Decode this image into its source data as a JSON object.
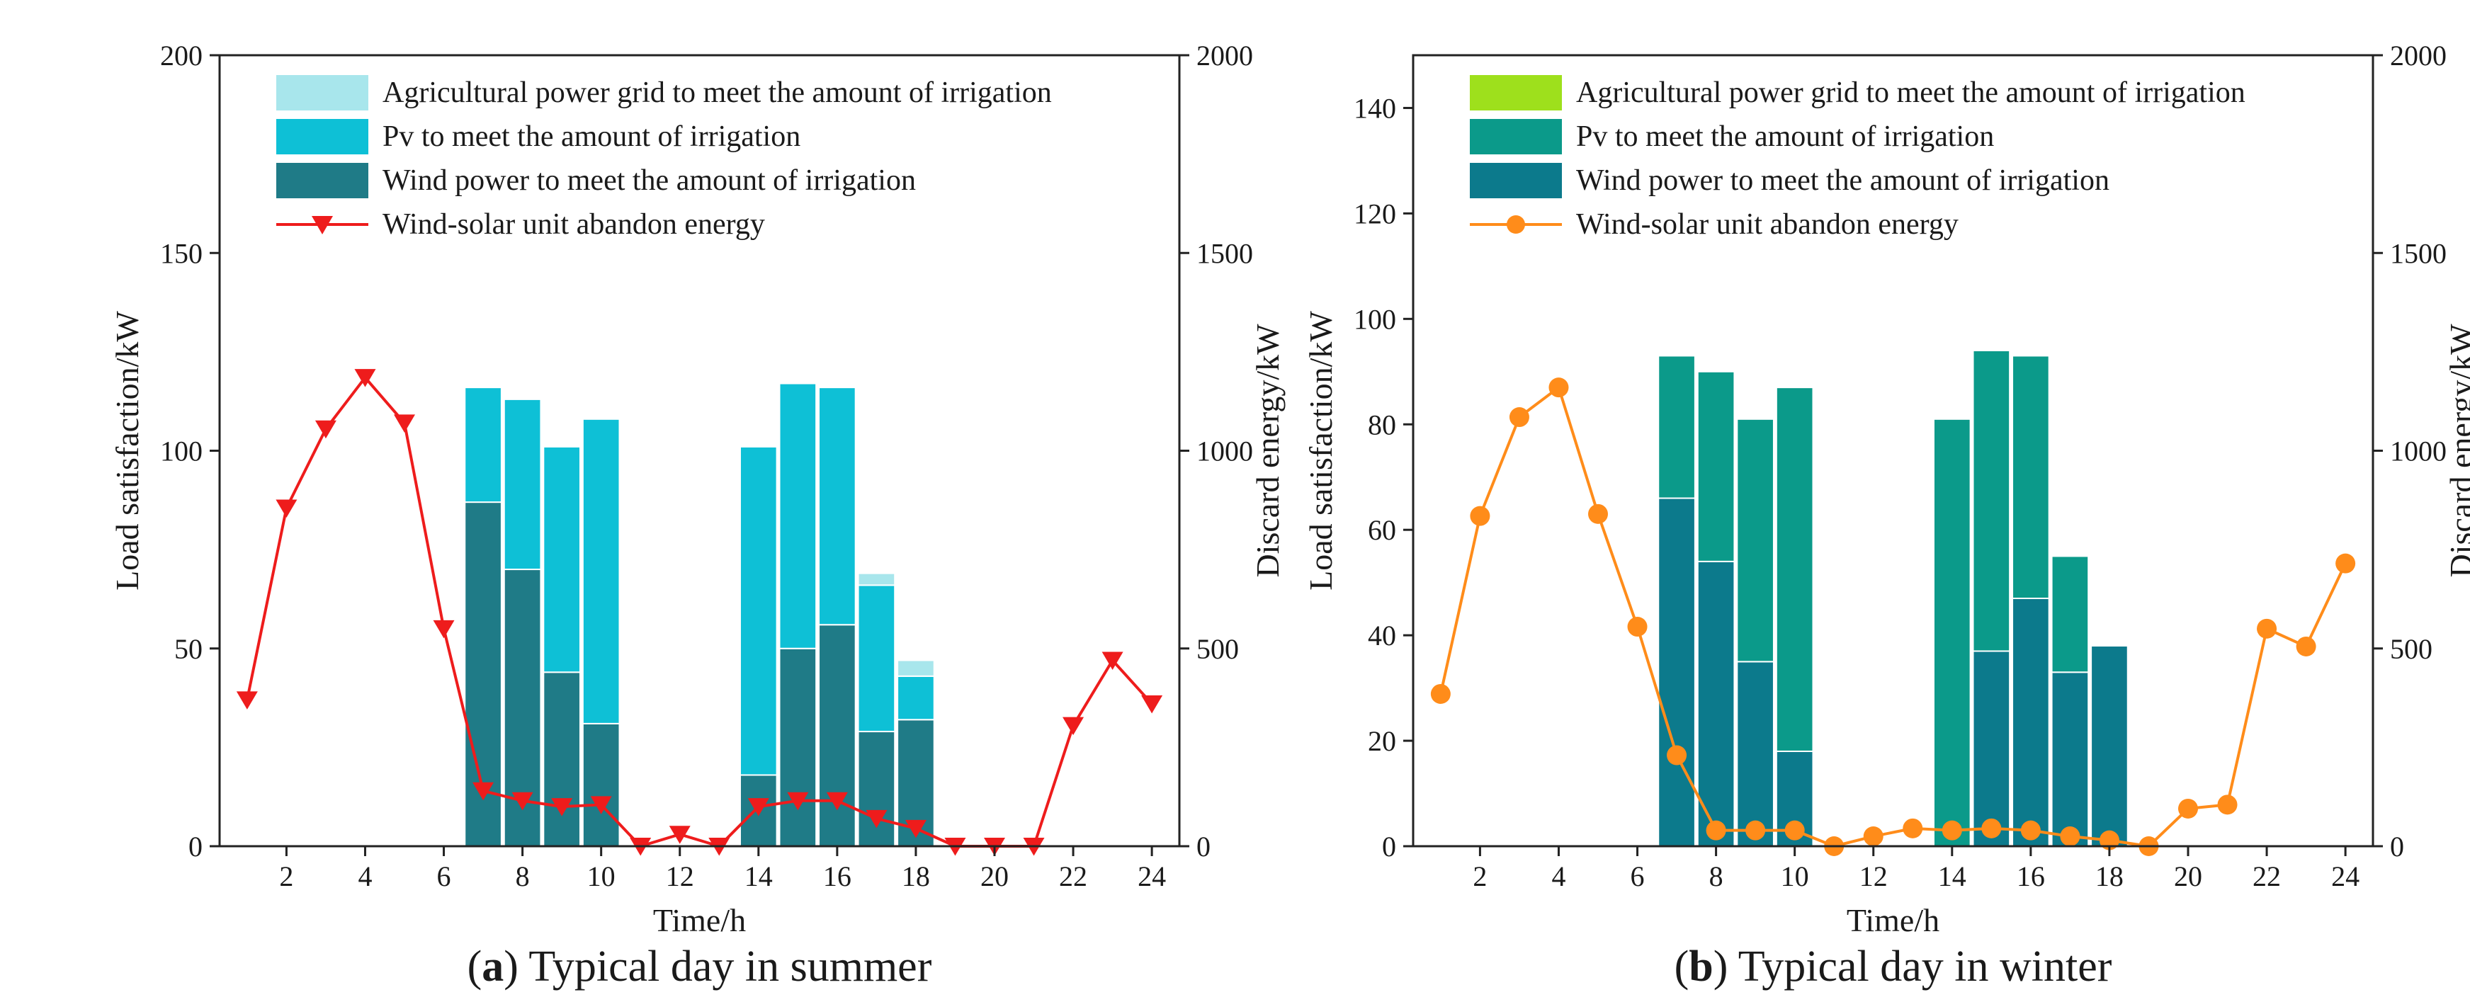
{
  "chart_data": [
    {
      "type": "bar",
      "panel_id": "summer",
      "caption_letter": "a",
      "caption_rest": ") Typical day in summer",
      "xlabel": "Time/h",
      "ylabel": "Load satisfaction/kW",
      "y2label": "Discard energy/kW",
      "xlim": [
        0.3,
        24.7
      ],
      "xticks": [
        2,
        4,
        6,
        8,
        10,
        12,
        14,
        16,
        18,
        20,
        22,
        24
      ],
      "ylim": [
        0,
        200
      ],
      "yticks": [
        0,
        50,
        100,
        150,
        200
      ],
      "y2lim": [
        0,
        2000
      ],
      "y2ticks": [
        0,
        500,
        1000,
        1500,
        2000
      ],
      "legend_placement": "top-left",
      "bar_hours": [
        7,
        8,
        9,
        10,
        14,
        15,
        16,
        17,
        18
      ],
      "series": [
        {
          "name": "Agricultural power grid to meet the amount of irrigation",
          "kind": "bar",
          "color": "#a8e6ec",
          "values": [
            0,
            0,
            0,
            0,
            0,
            0,
            0,
            3,
            4
          ]
        },
        {
          "name": "Pv to meet the amount of irrigation",
          "kind": "bar",
          "color": "#0ec0d6",
          "values": [
            29,
            43,
            57,
            77,
            83,
            67,
            60,
            37,
            11
          ]
        },
        {
          "name": "Wind power to meet the amount of irrigation",
          "kind": "bar",
          "color": "#1f7b87",
          "values": [
            87,
            70,
            44,
            31,
            18,
            50,
            56,
            29,
            32
          ]
        },
        {
          "name": "Wind-solar unit abandon energy",
          "kind": "line",
          "axis": "right",
          "color": "#ee1c1c",
          "marker": "triangle-down",
          "x": [
            1,
            2,
            3,
            4,
            5,
            6,
            7,
            8,
            9,
            10,
            11,
            12,
            13,
            14,
            15,
            16,
            17,
            18,
            19,
            20,
            21,
            22,
            23,
            24
          ],
          "values": [
            370,
            855,
            1055,
            1185,
            1070,
            550,
            140,
            115,
            100,
            105,
            0,
            30,
            0,
            100,
            115,
            115,
            70,
            45,
            0,
            0,
            0,
            305,
            470,
            360
          ]
        }
      ]
    },
    {
      "type": "bar",
      "panel_id": "winter",
      "caption_letter": "b",
      "caption_rest": ") Typical day in winter",
      "xlabel": "Time/h",
      "ylabel": "Load satisfaction/kW",
      "y2label": "Discard energy/kW",
      "xlim": [
        0.3,
        24.7
      ],
      "xticks": [
        2,
        4,
        6,
        8,
        10,
        12,
        14,
        16,
        18,
        20,
        22,
        24
      ],
      "ylim": [
        0,
        150
      ],
      "yticks": [
        0,
        20,
        40,
        60,
        80,
        100,
        120,
        140
      ],
      "y2lim": [
        0,
        2000
      ],
      "y2ticks": [
        0,
        500,
        1000,
        1500,
        2000
      ],
      "legend_placement": "top-left",
      "bar_hours": [
        7,
        8,
        9,
        10,
        14,
        15,
        16,
        17,
        18
      ],
      "series": [
        {
          "name": "Agricultural power grid to meet the amount of irrigation",
          "kind": "bar",
          "color": "#9ee01c",
          "values": [
            0,
            0,
            0,
            0,
            0,
            0,
            0,
            0,
            0
          ]
        },
        {
          "name": "Pv to meet the amount of irrigation",
          "kind": "bar",
          "color": "#0b9a8a",
          "values": [
            27,
            36,
            46,
            69,
            81,
            57,
            46,
            22,
            0
          ]
        },
        {
          "name": "Wind power to meet the amount of irrigation",
          "kind": "bar",
          "color": "#0c7a8c",
          "values": [
            66,
            54,
            35,
            18,
            0,
            37,
            47,
            33,
            38
          ]
        },
        {
          "name": "Wind-solar unit abandon energy",
          "kind": "line",
          "axis": "right",
          "color": "#ff8c1a",
          "marker": "circle",
          "x": [
            1,
            2,
            3,
            4,
            5,
            6,
            7,
            8,
            9,
            10,
            11,
            12,
            13,
            14,
            15,
            16,
            17,
            18,
            19,
            20,
            21,
            22,
            23,
            24
          ],
          "values": [
            385,
            835,
            1085,
            1160,
            840,
            555,
            230,
            40,
            40,
            40,
            0,
            25,
            45,
            40,
            45,
            40,
            25,
            15,
            0,
            95,
            105,
            550,
            505,
            715
          ]
        }
      ]
    }
  ]
}
